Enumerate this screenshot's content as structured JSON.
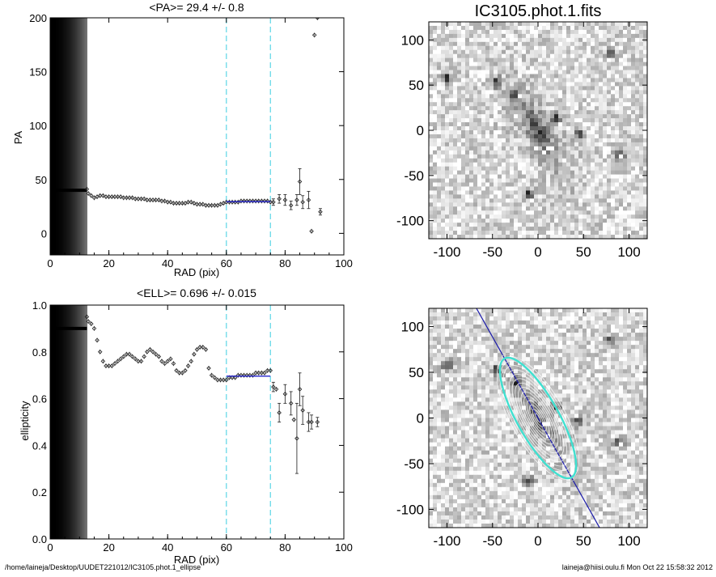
{
  "footer": {
    "path": "/home/laineja/Desktop/UUDET221012/IC3105.phot.1_ellipse",
    "user_time": "laineja@hiisi.oulu.fi  Mon Oct 22 15:58:32 2012"
  },
  "image_title": "IC3105.phot.1.fits",
  "colors": {
    "fit_line": "#2222cc",
    "cyan_marker": "#5cd6e6",
    "contours": "#ffffff",
    "ellipse": "#40e0d0",
    "major_axis_line": "#1a1aaa"
  },
  "chart_data": [
    {
      "type": "scatter",
      "title": "<PA>=  29.4 +/-   0.8",
      "xlabel": "RAD (pix)",
      "ylabel": "PA",
      "xlim": [
        0,
        100
      ],
      "ylim": [
        -20,
        200
      ],
      "xticks": [
        "0",
        "20",
        "40",
        "60",
        "80",
        "100"
      ],
      "yticks": [
        "0",
        "50",
        "100",
        "150",
        "200"
      ],
      "xtick_values": [
        0,
        20,
        40,
        60,
        80,
        100
      ],
      "ytick_values": [
        0,
        50,
        100,
        150,
        200
      ],
      "vlines": [
        60,
        75
      ],
      "mean_fit": {
        "x": [
          60,
          75
        ],
        "y": 29.4
      },
      "inner_band_x": 12.5,
      "inner_value": 40,
      "points": [
        [
          12.5,
          41
        ],
        [
          13,
          37
        ],
        [
          14,
          35
        ],
        [
          15,
          33
        ],
        [
          16,
          34
        ],
        [
          17,
          35
        ],
        [
          18,
          35
        ],
        [
          19,
          34
        ],
        [
          20,
          34
        ],
        [
          21,
          34
        ],
        [
          22,
          34
        ],
        [
          23,
          34
        ],
        [
          24,
          34
        ],
        [
          25,
          33
        ],
        [
          26,
          33
        ],
        [
          27,
          33
        ],
        [
          28,
          33
        ],
        [
          29,
          32
        ],
        [
          30,
          32
        ],
        [
          31,
          32
        ],
        [
          32,
          32
        ],
        [
          33,
          31
        ],
        [
          34,
          31
        ],
        [
          35,
          31
        ],
        [
          36,
          31
        ],
        [
          37,
          31
        ],
        [
          38,
          30
        ],
        [
          39,
          30
        ],
        [
          40,
          29
        ],
        [
          41,
          29
        ],
        [
          42,
          28
        ],
        [
          43,
          28
        ],
        [
          44,
          28
        ],
        [
          45,
          28
        ],
        [
          46,
          28
        ],
        [
          47,
          29
        ],
        [
          48,
          29
        ],
        [
          49,
          28
        ],
        [
          50,
          27
        ],
        [
          51,
          27
        ],
        [
          52,
          27
        ],
        [
          53,
          26
        ],
        [
          54,
          26
        ],
        [
          55,
          26
        ],
        [
          56,
          26
        ],
        [
          57,
          26
        ],
        [
          58,
          27
        ],
        [
          59,
          28
        ],
        [
          60,
          29
        ],
        [
          61,
          29
        ],
        [
          62,
          29
        ],
        [
          63,
          29
        ],
        [
          64,
          29
        ],
        [
          65,
          30
        ],
        [
          66,
          30
        ],
        [
          67,
          30
        ],
        [
          68,
          30
        ],
        [
          69,
          30
        ],
        [
          70,
          30
        ],
        [
          71,
          30
        ],
        [
          72,
          30
        ],
        [
          73,
          30
        ],
        [
          74,
          30
        ],
        [
          75,
          29
        ],
        [
          76,
          29
        ],
        [
          78,
          32
        ],
        [
          80,
          31
        ],
        [
          82,
          26
        ],
        [
          84,
          31
        ],
        [
          85,
          48
        ],
        [
          86,
          29
        ],
        [
          88,
          31
        ],
        [
          89,
          2
        ],
        [
          90,
          184
        ],
        [
          91,
          200
        ],
        [
          92,
          20
        ]
      ],
      "errors": [
        [
          76,
          3
        ],
        [
          78,
          4
        ],
        [
          80,
          5
        ],
        [
          82,
          4
        ],
        [
          84,
          5
        ],
        [
          85,
          12
        ],
        [
          86,
          6
        ],
        [
          88,
          8
        ],
        [
          92,
          3
        ]
      ]
    },
    {
      "type": "scatter",
      "title": "<ELL>= 0.696 +/-  0.015",
      "xlabel": "RAD (pix)",
      "ylabel": "ellipticity",
      "xlim": [
        0,
        100
      ],
      "ylim": [
        0,
        1
      ],
      "xticks": [
        "0",
        "20",
        "40",
        "60",
        "80",
        "100"
      ],
      "yticks": [
        "0.0",
        "0.2",
        "0.4",
        "0.6",
        "0.8",
        "1.0"
      ],
      "xtick_values": [
        0,
        20,
        40,
        60,
        80,
        100
      ],
      "ytick_values": [
        0,
        0.2,
        0.4,
        0.6,
        0.8,
        1.0
      ],
      "vlines": [
        60,
        75
      ],
      "mean_fit": {
        "x": [
          60,
          75
        ],
        "y": 0.696
      },
      "inner_band_x": 12.5,
      "inner_value": 0.9,
      "points": [
        [
          12.5,
          0.95
        ],
        [
          13,
          0.93
        ],
        [
          14,
          0.92
        ],
        [
          15,
          0.9
        ],
        [
          16,
          0.85
        ],
        [
          17,
          0.8
        ],
        [
          18,
          0.76
        ],
        [
          19,
          0.74
        ],
        [
          20,
          0.74
        ],
        [
          21,
          0.74
        ],
        [
          22,
          0.75
        ],
        [
          23,
          0.76
        ],
        [
          24,
          0.77
        ],
        [
          25,
          0.78
        ],
        [
          26,
          0.79
        ],
        [
          27,
          0.79
        ],
        [
          28,
          0.78
        ],
        [
          29,
          0.77
        ],
        [
          30,
          0.76
        ],
        [
          31,
          0.76
        ],
        [
          32,
          0.78
        ],
        [
          33,
          0.8
        ],
        [
          34,
          0.81
        ],
        [
          35,
          0.8
        ],
        [
          36,
          0.79
        ],
        [
          37,
          0.78
        ],
        [
          38,
          0.76
        ],
        [
          39,
          0.75
        ],
        [
          40,
          0.76
        ],
        [
          41,
          0.77
        ],
        [
          42,
          0.75
        ],
        [
          43,
          0.72
        ],
        [
          44,
          0.71
        ],
        [
          45,
          0.71
        ],
        [
          46,
          0.72
        ],
        [
          47,
          0.74
        ],
        [
          48,
          0.76
        ],
        [
          49,
          0.79
        ],
        [
          50,
          0.81
        ],
        [
          51,
          0.82
        ],
        [
          52,
          0.82
        ],
        [
          53,
          0.81
        ],
        [
          54,
          0.73
        ],
        [
          55,
          0.7
        ],
        [
          56,
          0.69
        ],
        [
          57,
          0.68
        ],
        [
          58,
          0.68
        ],
        [
          59,
          0.68
        ],
        [
          60,
          0.68
        ],
        [
          61,
          0.69
        ],
        [
          62,
          0.69
        ],
        [
          63,
          0.69
        ],
        [
          64,
          0.7
        ],
        [
          65,
          0.7
        ],
        [
          66,
          0.7
        ],
        [
          67,
          0.7
        ],
        [
          68,
          0.7
        ],
        [
          69,
          0.7
        ],
        [
          70,
          0.71
        ],
        [
          71,
          0.71
        ],
        [
          72,
          0.71
        ],
        [
          73,
          0.71
        ],
        [
          74,
          0.72
        ],
        [
          75,
          0.72
        ],
        [
          76,
          0.65
        ],
        [
          77,
          0.64
        ],
        [
          78,
          0.54
        ],
        [
          80,
          0.62
        ],
        [
          82,
          0.58
        ],
        [
          83,
          0.51
        ],
        [
          84,
          0.43
        ],
        [
          85,
          0.64
        ],
        [
          86,
          0.55
        ],
        [
          88,
          0.5
        ],
        [
          89,
          0.5
        ],
        [
          91,
          0.5
        ]
      ],
      "errors": [
        [
          76,
          0.02
        ],
        [
          78,
          0.04
        ],
        [
          80,
          0.04
        ],
        [
          82,
          0.05
        ],
        [
          84,
          0.15
        ],
        [
          85,
          0.07
        ],
        [
          86,
          0.06
        ],
        [
          88,
          0.04
        ],
        [
          89,
          0.03
        ],
        [
          91,
          0.02
        ]
      ]
    },
    {
      "type": "heatmap",
      "title": "IC3105.phot.1.fits",
      "xlim": [
        -120,
        120
      ],
      "ylim": [
        -120,
        120
      ],
      "xticks": [
        "-100",
        "-50",
        "0",
        "50",
        "100"
      ],
      "yticks": [
        "-100",
        "-50",
        "0",
        "50",
        "100"
      ],
      "tick_values": [
        -100,
        -50,
        0,
        50,
        100
      ],
      "galaxy_pa_deg": 29.4,
      "galaxy_ellipticity": 0.696
    },
    {
      "type": "heatmap",
      "xlim": [
        -120,
        120
      ],
      "ylim": [
        -120,
        120
      ],
      "xticks": [
        "-100",
        "-50",
        "0",
        "50",
        "100"
      ],
      "yticks": [
        "-100",
        "-50",
        "0",
        "50",
        "100"
      ],
      "tick_values": [
        -100,
        -50,
        0,
        50,
        100
      ],
      "contours": true,
      "fitted_ellipse": {
        "a": 75,
        "ellipticity": 0.696,
        "pa_deg": 29.4
      }
    }
  ]
}
